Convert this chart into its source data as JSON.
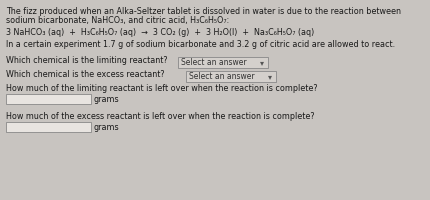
{
  "bg_color": "#c8c4c0",
  "text_color": "#1a1a1a",
  "title_line1": "The fizz produced when an Alka-Seltzer tablet is dissolved in water is due to the reaction between",
  "title_line2": "sodium bicarbonate, NaHCO₃, and citric acid, H₃C₆H₅O₇:",
  "equation": "3 NaHCO₃ (aq)  +  H₃C₆H₅O₇ (aq)  →  3 CO₂ (g)  +  3 H₂O(l)  +  Na₃C₆H₅O₇ (aq)",
  "experiment_text": "In a certain experiment 1.7 g of sodium bicarbonate and 3.2 g of citric acid are allowed to react.",
  "q1": "Which chemical is the limiting reactant?",
  "q2": "Which chemical is the excess reactant?",
  "q3": "How much of the limiting reactant is left over when the reaction is complete?",
  "q4": "How much of the excess reactant is left over when the reaction is complete?",
  "dropdown_text": "Select an answer",
  "unit_text": "grams",
  "font_size_body": 5.8,
  "font_size_eq": 5.8,
  "dd_facecolor": "#d4d0cc",
  "dd_edgecolor": "#888888",
  "ib_facecolor": "#e8e4e0",
  "ib_edgecolor": "#888888"
}
